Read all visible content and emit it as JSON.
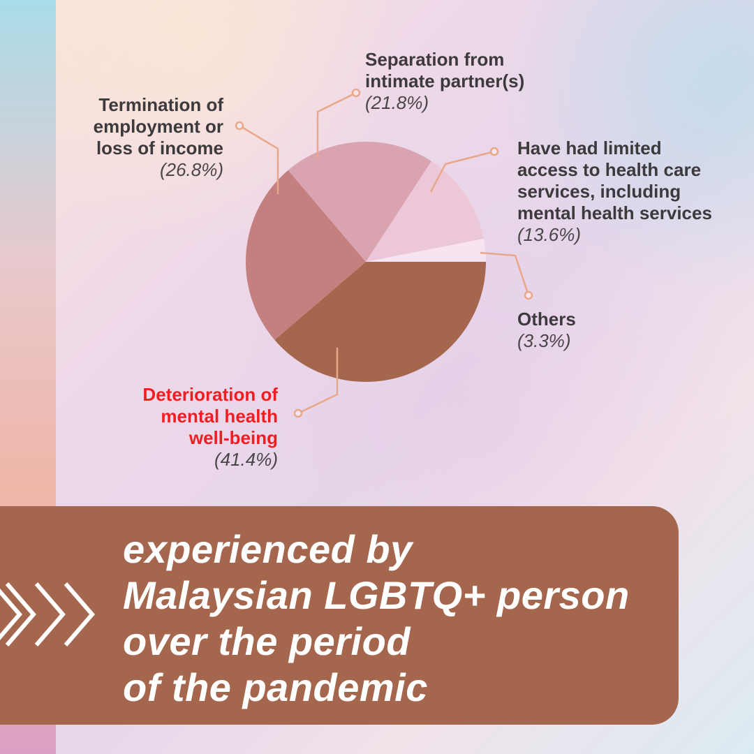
{
  "chart_data": {
    "type": "pie",
    "slices": [
      {
        "label": "Deterioration of mental health well-being",
        "value": 41.4,
        "pct_label": "(41.4%)",
        "color": "#a5664e",
        "highlight": true
      },
      {
        "label": "Termination of employment or loss of income",
        "value": 26.8,
        "pct_label": "(26.8%)",
        "color": "#c4807f"
      },
      {
        "label": "Separation from intimate partner(s)",
        "value": 21.8,
        "pct_label": "(21.8%)",
        "color": "#d9a3b0"
      },
      {
        "label": "Have had limited access to health care services, including mental health services",
        "value": 13.6,
        "pct_label": "(13.6%)",
        "color": "#ecc7d7"
      },
      {
        "label": "Others",
        "value": 3.3,
        "pct_label": "(3.3%)",
        "color": "#f8e3f0"
      }
    ],
    "highlight_color": "#ee1f23",
    "leader_color": "#e8a789"
  },
  "labels": {
    "mental": {
      "name": "Deterioration of\nmental health\nwell-being",
      "pct": "(41.4%)"
    },
    "employment": {
      "name": "Termination of\nemployment or\nloss of income",
      "pct": "(26.8%)"
    },
    "separation": {
      "name": "Separation from\nintimate partner(s)",
      "pct": "(21.8%)"
    },
    "access": {
      "name": "Have had limited\naccess to health care\nservices, including\nmental health services",
      "pct": "(13.6%)"
    },
    "others": {
      "name": "Others",
      "pct": "(3.3%)"
    }
  },
  "banner": {
    "line1": "experienced by",
    "line2": "Malaysian LGBTQ+ person",
    "line3": "over the period",
    "line4": "of the pandemic",
    "color": "#a5664e"
  }
}
